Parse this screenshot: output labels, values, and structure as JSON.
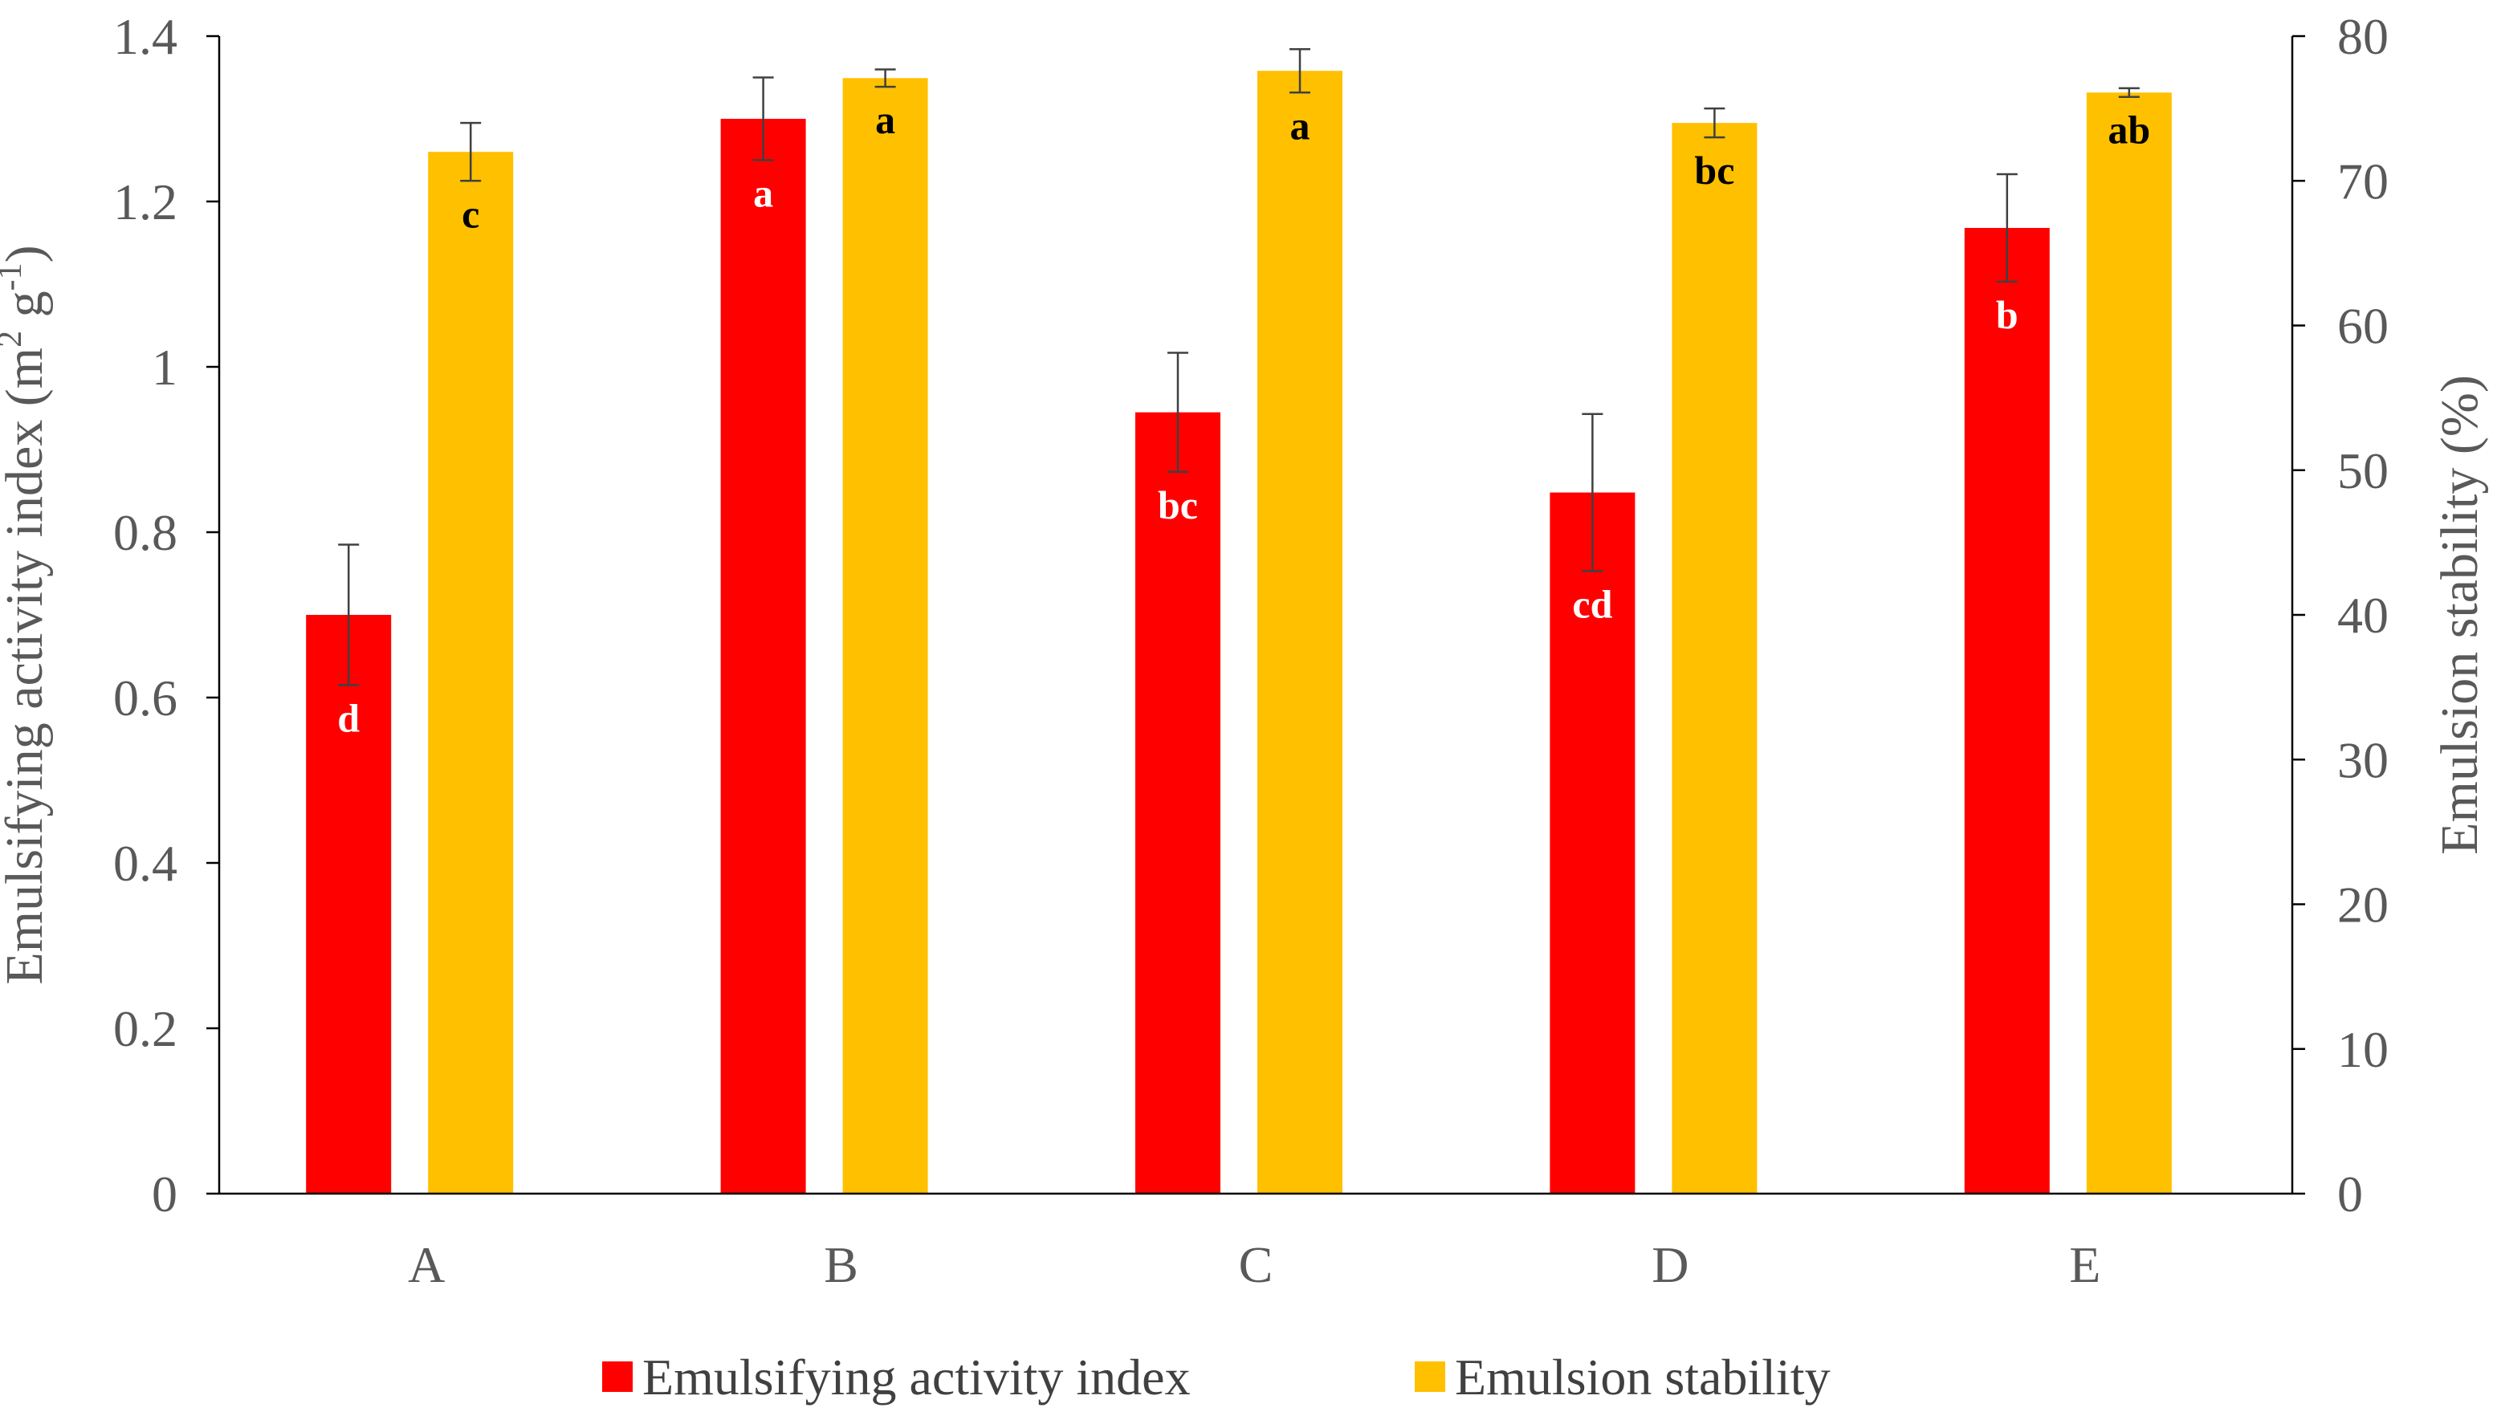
{
  "chart_data": {
    "type": "bar",
    "categories": [
      "A",
      "B",
      "C",
      "D",
      "E"
    ],
    "series": [
      {
        "name": "Emulsifying activity index",
        "axis": "left",
        "color": "#FF0000",
        "letter_color": "#FFFFFF",
        "values": [
          0.7,
          1.3,
          0.945,
          0.848,
          1.168
        ],
        "errors": [
          0.085,
          0.05,
          0.072,
          0.095,
          0.065
        ],
        "letters": [
          "d",
          "a",
          "bc",
          "cd",
          "b"
        ]
      },
      {
        "name": "Emulsion stability",
        "axis": "right",
        "color": "#FFC000",
        "letter_color": "#000000",
        "values": [
          72.0,
          77.1,
          77.6,
          74.0,
          76.1
        ],
        "errors": [
          2.0,
          0.6,
          1.5,
          1.0,
          0.3
        ],
        "letters": [
          "c",
          "a",
          "a",
          "bc",
          "ab"
        ]
      }
    ],
    "y_left": {
      "label": "Emulsifying activity index (m",
      "label_sup1": "2",
      "label_mid": " g",
      "label_sup2": "-1",
      "label_end": ")",
      "ylim": [
        0,
        1.4
      ],
      "ticks": [
        "0",
        "0.2",
        "0.4",
        "0.6",
        "0.8",
        "1",
        "1.2",
        "1.4"
      ],
      "tick_values": [
        0,
        0.2,
        0.4,
        0.6,
        0.8,
        1.0,
        1.2,
        1.4
      ]
    },
    "y_right": {
      "label": "Emulsion stability (%)",
      "ylim": [
        0,
        80
      ],
      "ticks": [
        "0",
        "10",
        "20",
        "30",
        "40",
        "50",
        "60",
        "70",
        "80"
      ],
      "tick_values": [
        0,
        10,
        20,
        30,
        40,
        50,
        60,
        70,
        80
      ]
    },
    "legend": {
      "placement": "bottom-center",
      "entries": [
        "Emulsifying activity index",
        "Emulsion stability"
      ]
    },
    "grid": false,
    "title": ""
  }
}
